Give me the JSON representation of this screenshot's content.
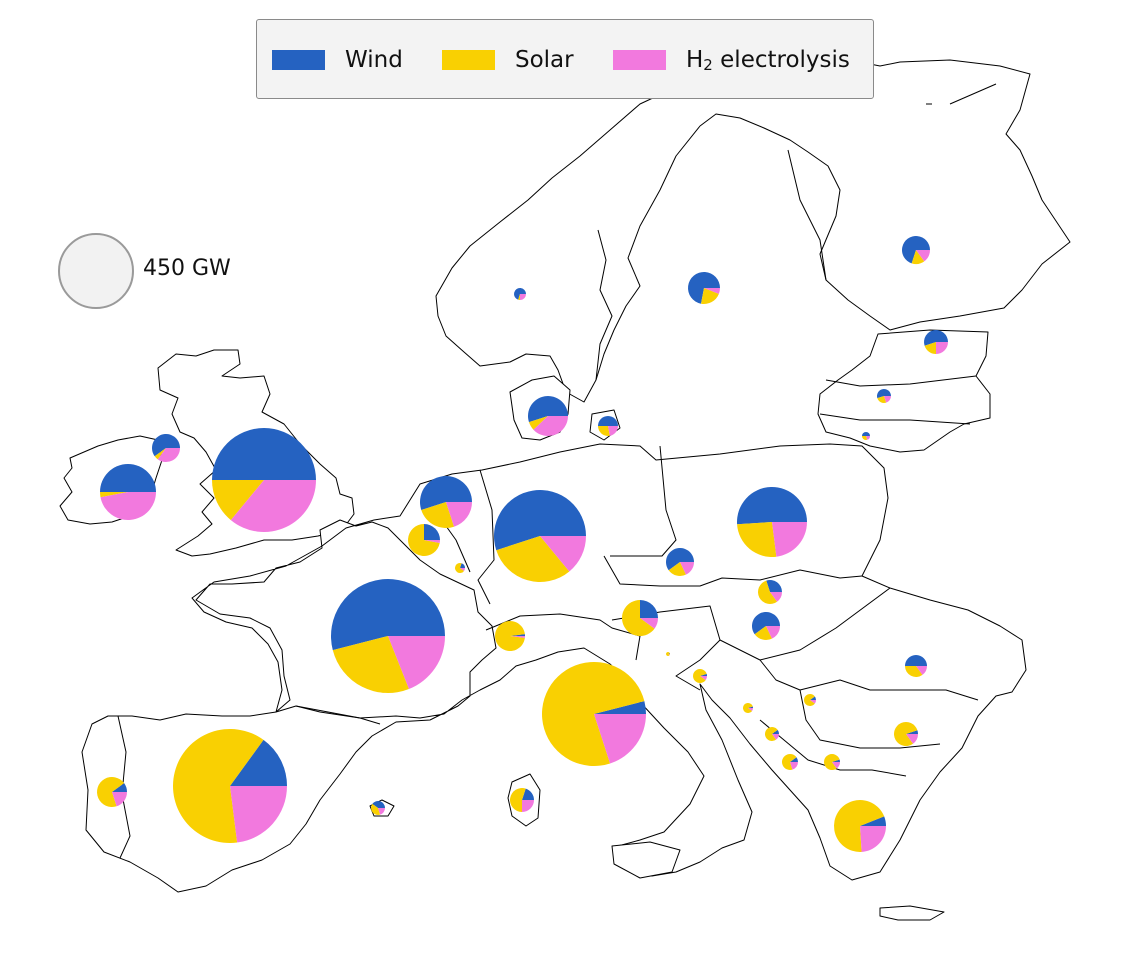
{
  "legend": {
    "items": [
      {
        "key": "wind",
        "label": "Wind",
        "color": "#2562c1"
      },
      {
        "key": "solar",
        "label": "Solar",
        "color": "#f9d002"
      },
      {
        "key": "h2",
        "label": "H",
        "sub": "2",
        "suffix": " electrolysis",
        "color": "#f279de"
      }
    ]
  },
  "size_legend": {
    "label": "450 GW",
    "value_gw": 450
  },
  "countries": [
    {
      "id": "ireland",
      "wind": 0.5,
      "solar": 0.03,
      "h2": 0.47
    },
    {
      "id": "northern-ireland",
      "wind": 0.6,
      "solar": 0.05,
      "h2": 0.35
    },
    {
      "id": "great-britain",
      "wind": 0.5,
      "solar": 0.14,
      "h2": 0.36
    },
    {
      "id": "norway",
      "wind": 0.7,
      "solar": 0.05,
      "h2": 0.25
    },
    {
      "id": "sweden",
      "wind": 0.72,
      "solar": 0.22,
      "h2": 0.06
    },
    {
      "id": "finland",
      "wind": 0.7,
      "solar": 0.15,
      "h2": 0.15
    },
    {
      "id": "estonia",
      "wind": 0.55,
      "solar": 0.2,
      "h2": 0.25
    },
    {
      "id": "latvia",
      "wind": 0.55,
      "solar": 0.25,
      "h2": 0.2
    },
    {
      "id": "lithuania",
      "wind": 0.5,
      "solar": 0.3,
      "h2": 0.2
    },
    {
      "id": "denmark",
      "wind": 0.55,
      "solar": 0.07,
      "h2": 0.38
    },
    {
      "id": "denmark-east",
      "wind": 0.5,
      "solar": 0.28,
      "h2": 0.22
    },
    {
      "id": "netherlands",
      "wind": 0.55,
      "solar": 0.25,
      "h2": 0.2
    },
    {
      "id": "belgium",
      "wind": 0.25,
      "solar": 0.72,
      "h2": 0.03
    },
    {
      "id": "luxembourg",
      "wind": 0.2,
      "solar": 0.7,
      "h2": 0.1
    },
    {
      "id": "germany",
      "wind": 0.55,
      "solar": 0.31,
      "h2": 0.14
    },
    {
      "id": "poland",
      "wind": 0.51,
      "solar": 0.26,
      "h2": 0.23
    },
    {
      "id": "czechia",
      "wind": 0.6,
      "solar": 0.22,
      "h2": 0.18
    },
    {
      "id": "slovakia",
      "wind": 0.3,
      "solar": 0.55,
      "h2": 0.15
    },
    {
      "id": "hungary",
      "wind": 0.6,
      "solar": 0.22,
      "h2": 0.18
    },
    {
      "id": "austria",
      "wind": 0.25,
      "solar": 0.65,
      "h2": 0.1
    },
    {
      "id": "switzerland",
      "wind": 0.02,
      "solar": 0.96,
      "h2": 0.02
    },
    {
      "id": "slovenia",
      "wind": 0.05,
      "solar": 0.9,
      "h2": 0.05
    },
    {
      "id": "france",
      "wind": 0.54,
      "solar": 0.27,
      "h2": 0.19
    },
    {
      "id": "italy",
      "wind": 0.04,
      "solar": 0.76,
      "h2": 0.2
    },
    {
      "id": "sardinia",
      "wind": 0.2,
      "solar": 0.55,
      "h2": 0.25
    },
    {
      "id": "spain",
      "wind": 0.15,
      "solar": 0.62,
      "h2": 0.23
    },
    {
      "id": "portugal",
      "wind": 0.1,
      "solar": 0.7,
      "h2": 0.2
    },
    {
      "id": "balearic",
      "wind": 0.4,
      "solar": 0.4,
      "h2": 0.2
    },
    {
      "id": "croatia",
      "wind": 0.05,
      "solar": 0.85,
      "h2": 0.1
    },
    {
      "id": "bosnia",
      "wind": 0.05,
      "solar": 0.85,
      "h2": 0.1
    },
    {
      "id": "serbia",
      "wind": 0.1,
      "solar": 0.8,
      "h2": 0.1
    },
    {
      "id": "montenegro",
      "wind": 0.1,
      "solar": 0.75,
      "h2": 0.15
    },
    {
      "id": "albania",
      "wind": 0.1,
      "solar": 0.7,
      "h2": 0.2
    },
    {
      "id": "north-macedonia",
      "wind": 0.05,
      "solar": 0.8,
      "h2": 0.15
    },
    {
      "id": "bulgaria",
      "wind": 0.05,
      "solar": 0.8,
      "h2": 0.15
    },
    {
      "id": "romania",
      "wind": 0.5,
      "solar": 0.35,
      "h2": 0.15
    },
    {
      "id": "greece",
      "wind": 0.06,
      "solar": 0.7,
      "h2": 0.24
    }
  ]
}
